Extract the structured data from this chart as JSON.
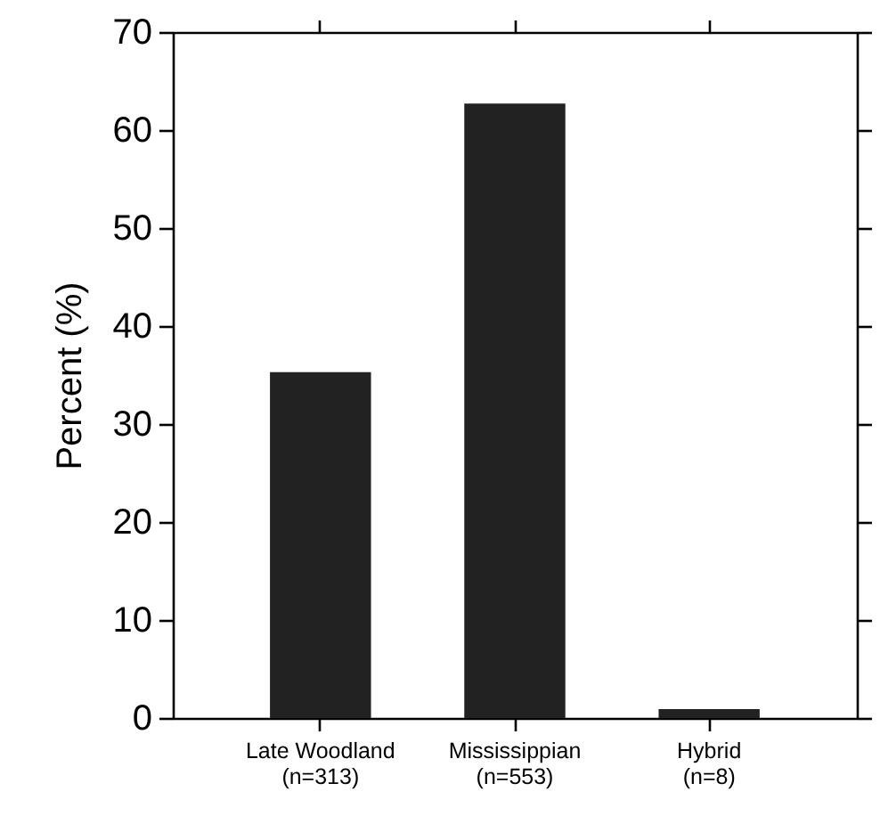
{
  "chart_data": {
    "type": "bar",
    "ylabel": "Percent (%)",
    "categories": [
      "Late Woodland\n(n=313)",
      "Mississippian\n(n=553)",
      "Hybrid\n(n=8)"
    ],
    "values": [
      35.3,
      62.7,
      0.9
    ],
    "color": "#222222",
    "ylim": [
      0,
      70
    ],
    "yticks": [
      0,
      10,
      20,
      30,
      40,
      50,
      60,
      70
    ],
    "grid": false
  }
}
